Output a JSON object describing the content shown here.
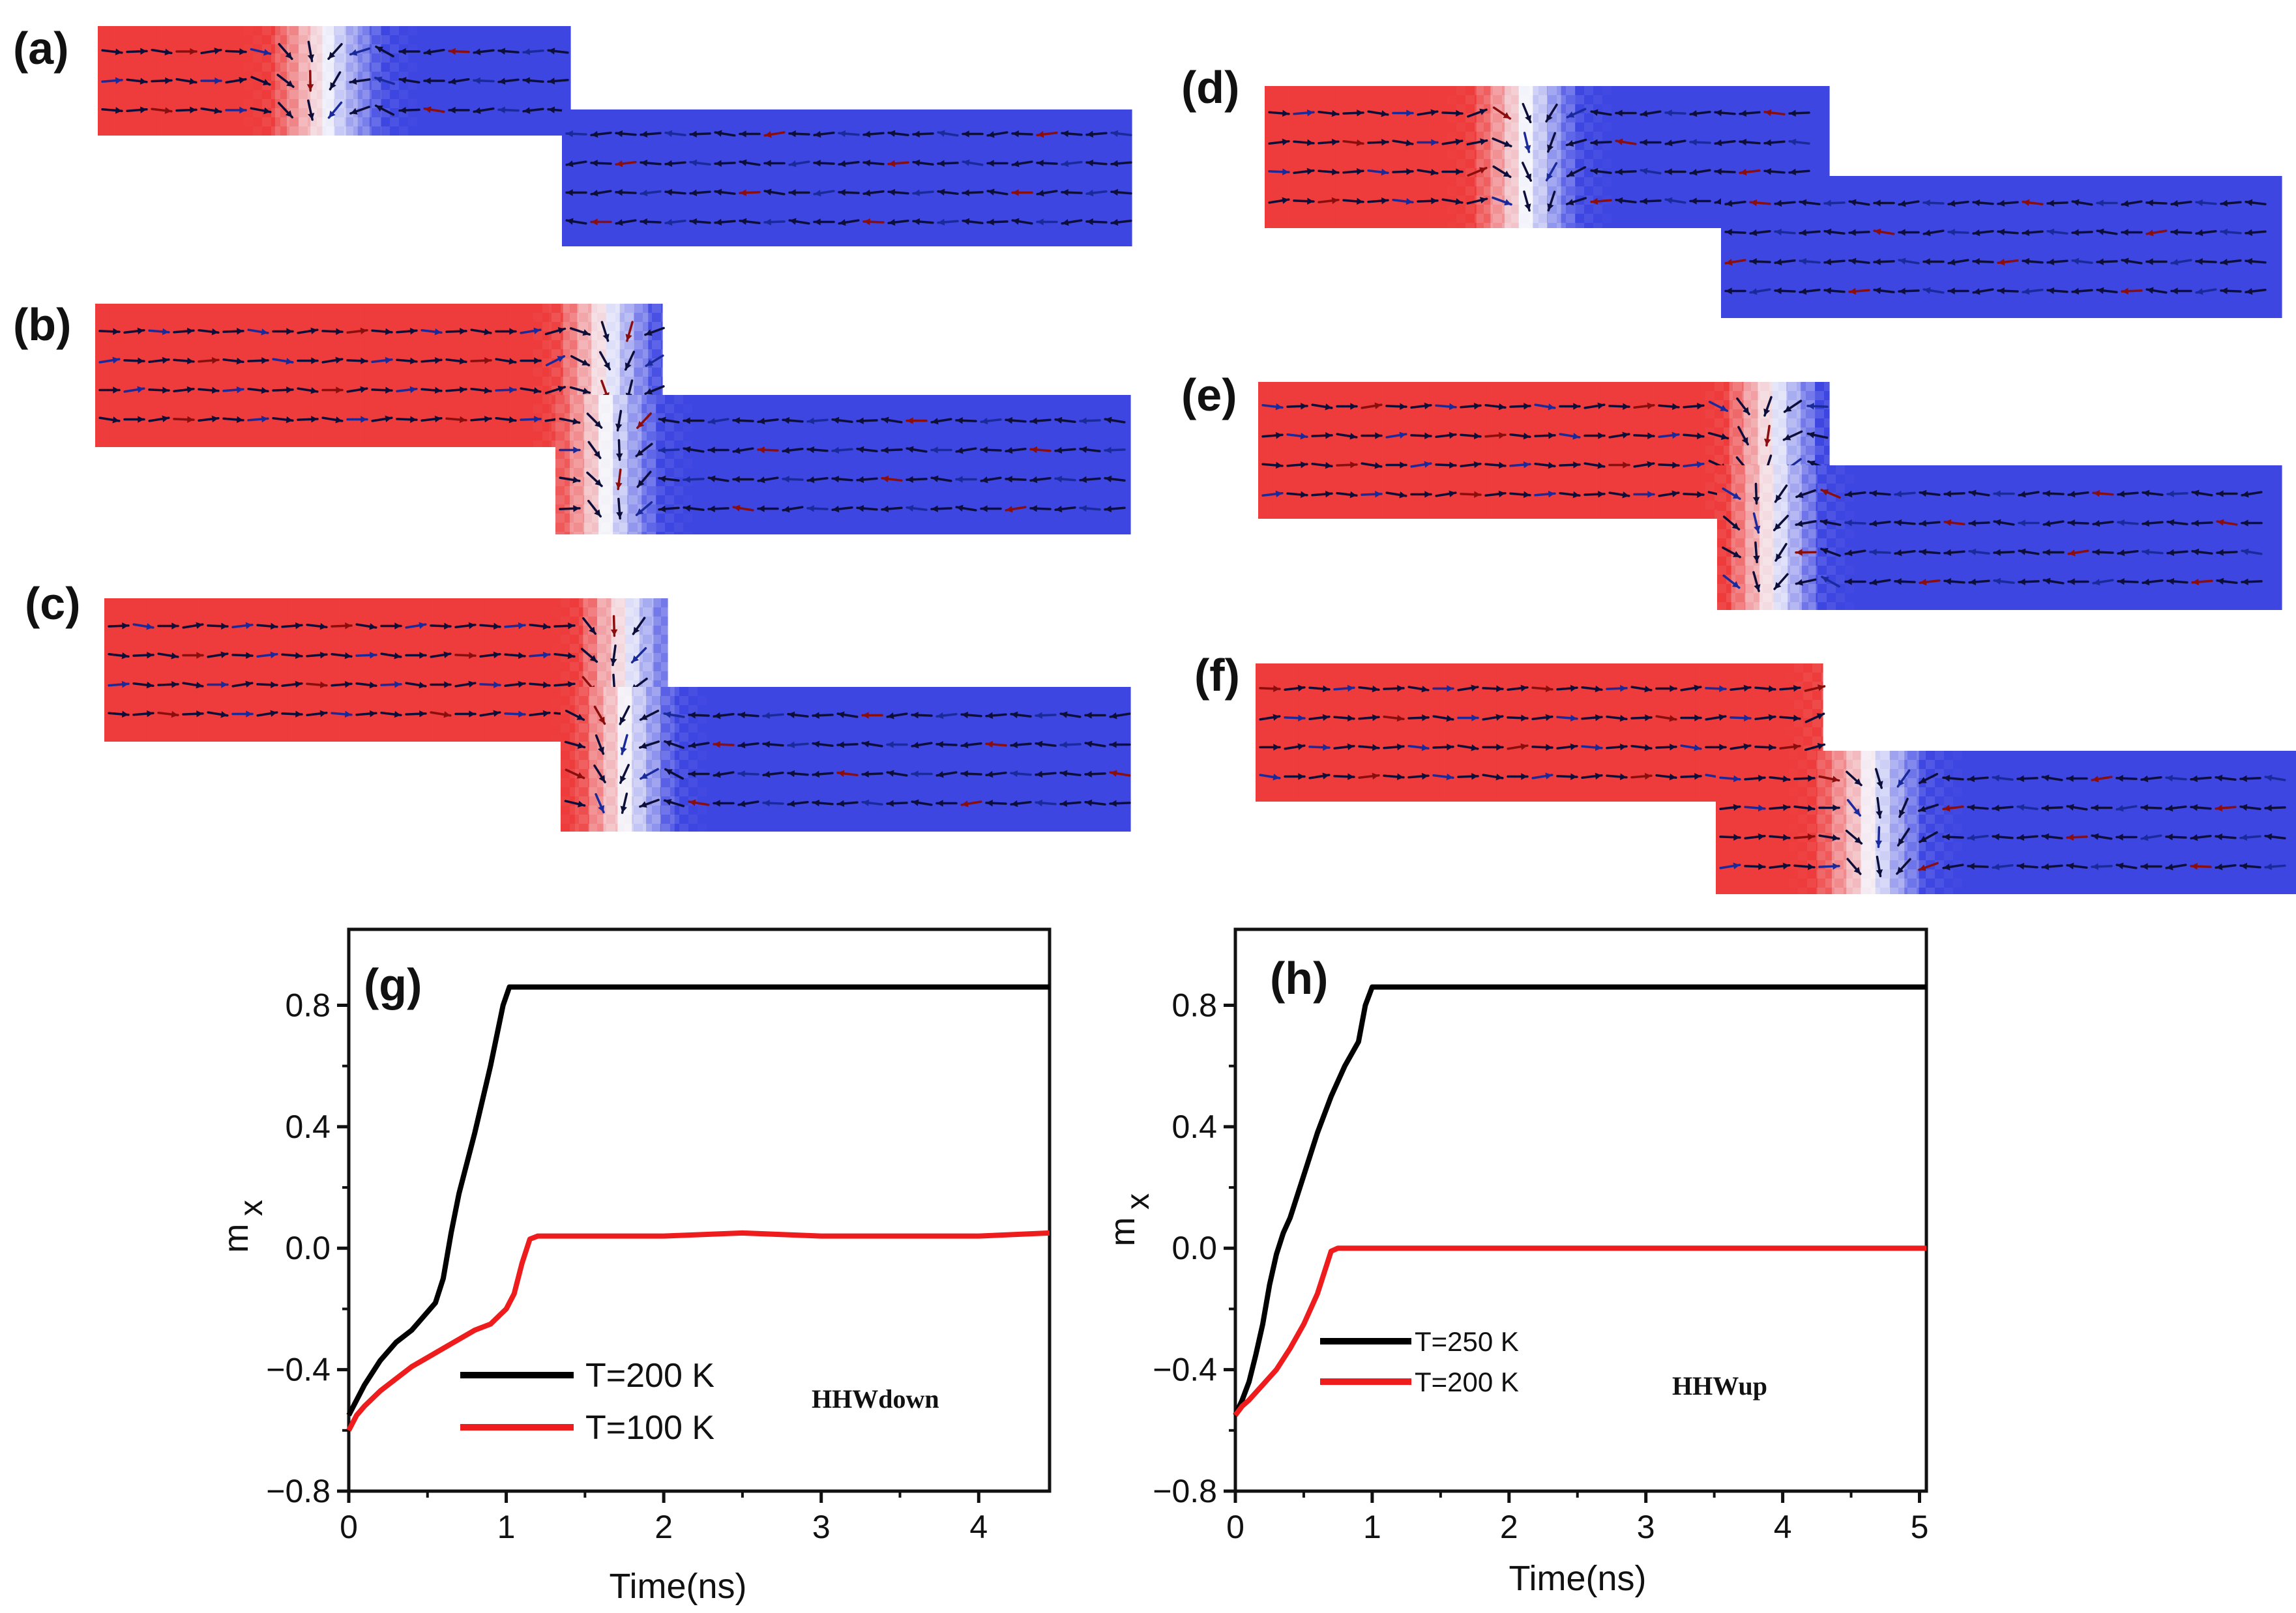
{
  "colors": {
    "red_domain": "#ee3b3b",
    "blue_domain": "#3e46e2",
    "wall": "#f4f4fb",
    "arrow_dark": "#0d0f3a",
    "arrow_blue": "#1a2a9a",
    "arrow_red": "#8a0e0e",
    "series_black": "#000000",
    "series_red": "#ee1c1c"
  },
  "panels": [
    {
      "label": "(a)",
      "wall_type": "centered-in-upper-arm"
    },
    {
      "label": "(b)",
      "wall_type": "at-step-corner"
    },
    {
      "label": "(c)",
      "wall_type": "at-step-corner-tilted"
    },
    {
      "label": "(d)",
      "wall_type": "centered-in-upper-arm"
    },
    {
      "label": "(e)",
      "wall_type": "at-step-corner"
    },
    {
      "label": "(f)",
      "wall_type": "in-lower-arm"
    }
  ],
  "chart_data": [
    {
      "type": "line",
      "panel_label": "(g)",
      "xlabel": "Time(ns)",
      "ylabel": "m",
      "ylabel_sub": "x",
      "xlim": [
        0,
        4.45
      ],
      "ylim": [
        -0.8,
        1.05
      ],
      "xticks": [
        0,
        1,
        2,
        3,
        4
      ],
      "xtick_labels": [
        "0",
        "1",
        "2",
        "3",
        "4"
      ],
      "yticks": [
        -0.8,
        -0.4,
        0.0,
        0.4,
        0.8
      ],
      "ytick_labels": [
        "−0.8",
        "−0.4",
        "0.0",
        "0.4",
        "0.8"
      ],
      "annotation": "HHWdown",
      "series": [
        {
          "name": "T=200 K",
          "color": "#000000",
          "x": [
            0,
            0.05,
            0.1,
            0.2,
            0.3,
            0.4,
            0.5,
            0.55,
            0.6,
            0.65,
            0.7,
            0.8,
            0.9,
            0.98,
            1.02,
            1.05,
            1.1,
            1.5,
            2.0,
            2.5,
            3.0,
            3.5,
            4.0,
            4.45
          ],
          "y": [
            -0.55,
            -0.5,
            -0.45,
            -0.37,
            -0.31,
            -0.27,
            -0.21,
            -0.18,
            -0.1,
            0.05,
            0.18,
            0.38,
            0.6,
            0.8,
            0.86,
            0.86,
            0.86,
            0.86,
            0.86,
            0.86,
            0.86,
            0.86,
            0.86,
            0.86
          ]
        },
        {
          "name": "T=100 K",
          "color": "#ee1c1c",
          "x": [
            0,
            0.05,
            0.1,
            0.2,
            0.3,
            0.4,
            0.5,
            0.6,
            0.7,
            0.8,
            0.9,
            1.0,
            1.05,
            1.1,
            1.15,
            1.2,
            1.5,
            2.0,
            2.5,
            3.0,
            3.5,
            4.0,
            4.45
          ],
          "y": [
            -0.6,
            -0.55,
            -0.52,
            -0.47,
            -0.43,
            -0.39,
            -0.36,
            -0.33,
            -0.3,
            -0.27,
            -0.25,
            -0.2,
            -0.15,
            -0.05,
            0.03,
            0.04,
            0.04,
            0.04,
            0.05,
            0.04,
            0.04,
            0.04,
            0.05
          ]
        }
      ]
    },
    {
      "type": "line",
      "panel_label": "(h)",
      "xlabel": "Time(ns)",
      "ylabel": "m",
      "ylabel_sub": "x",
      "xlim": [
        0,
        5.05
      ],
      "ylim": [
        -0.8,
        1.05
      ],
      "xticks": [
        0,
        1,
        2,
        3,
        4,
        5
      ],
      "xtick_labels": [
        "0",
        "1",
        "2",
        "3",
        "4",
        "5"
      ],
      "yticks": [
        -0.8,
        -0.4,
        0.0,
        0.4,
        0.8
      ],
      "ytick_labels": [
        "−0.8",
        "−0.4",
        "0.0",
        "0.4",
        "0.8"
      ],
      "annotation": "HHWup",
      "series": [
        {
          "name": "T=250 K",
          "color": "#000000",
          "x": [
            0,
            0.05,
            0.1,
            0.15,
            0.2,
            0.25,
            0.3,
            0.35,
            0.4,
            0.5,
            0.6,
            0.7,
            0.8,
            0.9,
            0.95,
            1.0,
            1.1,
            1.5,
            2.0,
            3.0,
            4.0,
            5.05
          ],
          "y": [
            -0.55,
            -0.5,
            -0.44,
            -0.35,
            -0.25,
            -0.12,
            -0.02,
            0.05,
            0.1,
            0.24,
            0.38,
            0.5,
            0.6,
            0.68,
            0.8,
            0.86,
            0.86,
            0.86,
            0.86,
            0.86,
            0.86,
            0.86
          ]
        },
        {
          "name": "T=200 K",
          "color": "#ee1c1c",
          "x": [
            0,
            0.05,
            0.1,
            0.2,
            0.3,
            0.4,
            0.5,
            0.6,
            0.65,
            0.7,
            0.75,
            0.8,
            1.0,
            1.5,
            2.0,
            2.5,
            3.0,
            4.0,
            5.05
          ],
          "y": [
            -0.55,
            -0.52,
            -0.5,
            -0.45,
            -0.4,
            -0.33,
            -0.25,
            -0.15,
            -0.08,
            -0.01,
            0.0,
            0.0,
            0.0,
            0.0,
            0.0,
            0.0,
            0.0,
            0.0,
            0.0
          ]
        }
      ]
    }
  ]
}
